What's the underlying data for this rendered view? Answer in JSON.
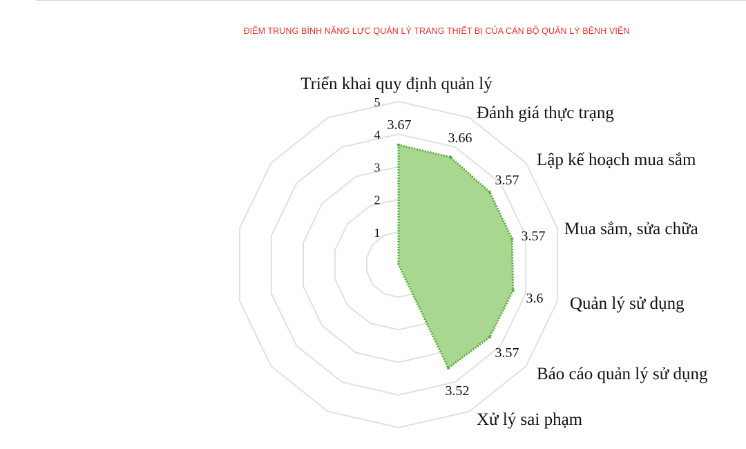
{
  "chart_data": {
    "type": "radar",
    "title": "ĐIỂM TRUNG BÌNH NĂNG LỰC QUẢN LÝ TRANG THIẾT BỊ CỦA CÁN BỘ QUẢN LÝ BỆNH VIỆN",
    "categories": [
      "Triển khai quy định quản lý",
      "Đánh giá thực trạng",
      "Lập kế hoạch mua sắm",
      "Mua sắm, sửa chữa",
      "Quản lý sử dụng",
      "Báo cáo quản lý sử dụng",
      "Xử lý sai phạm"
    ],
    "values": [
      3.67,
      3.66,
      3.57,
      3.57,
      3.6,
      3.57,
      3.52
    ],
    "value_labels": [
      "3.67",
      "3.66",
      "3.57",
      "3.57",
      "3.6",
      "3.57",
      "3.52"
    ],
    "r_ticks": [
      1,
      2,
      3,
      4,
      5
    ],
    "r_tick_labels": [
      "1",
      "2",
      "3",
      "4",
      "5"
    ],
    "rlim": [
      0,
      5
    ],
    "grid": true,
    "total_spokes": 14,
    "colors": {
      "fill": "#a9d78f",
      "stroke": "#4fae3b",
      "grid": "#e0e0e0",
      "title": "#e8312b"
    }
  }
}
